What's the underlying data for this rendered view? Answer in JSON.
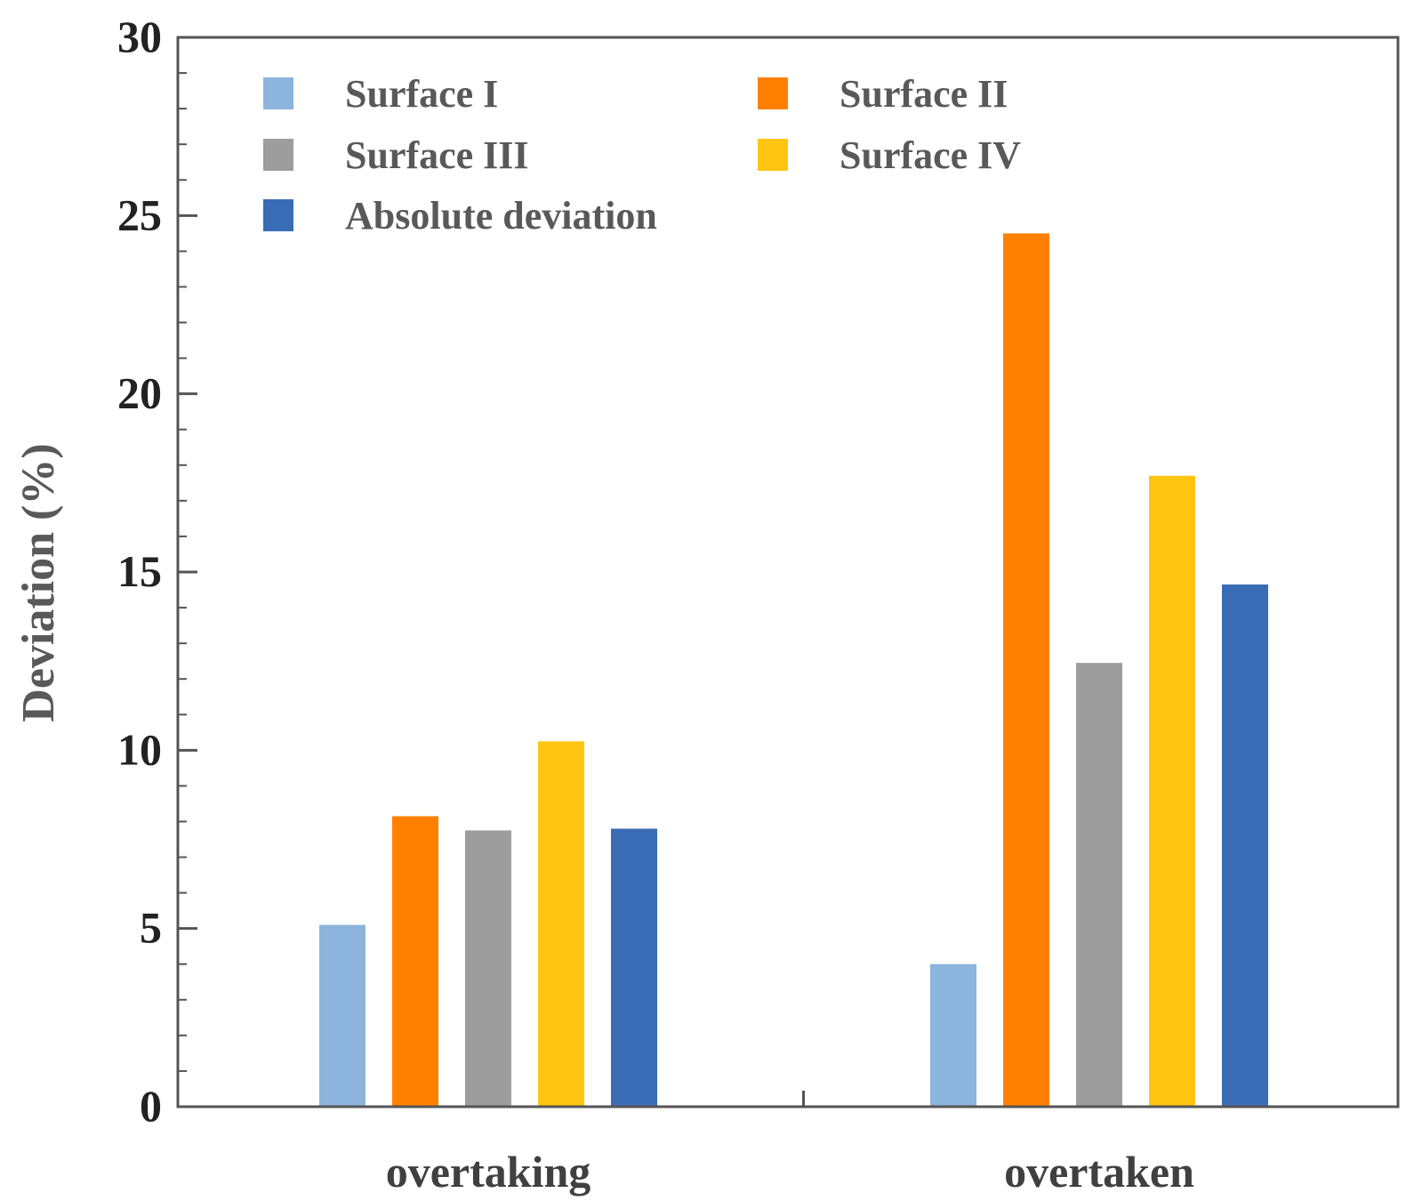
{
  "chart_data": {
    "type": "bar",
    "categories": [
      "overtaking",
      "overtaken"
    ],
    "series": [
      {
        "name": "Surface I",
        "color": "#8DB4DD",
        "values": [
          5.1,
          4.0
        ]
      },
      {
        "name": "Surface II",
        "color": "#FF8000",
        "values": [
          8.15,
          24.5
        ]
      },
      {
        "name": "Surface III",
        "color": "#9D9D9D",
        "values": [
          7.75,
          12.45
        ]
      },
      {
        "name": "Surface IV",
        "color": "#FFC511",
        "values": [
          10.25,
          17.7
        ]
      },
      {
        "name": "Absolute deviation",
        "color": "#3A6CB5",
        "values": [
          7.8,
          14.65
        ]
      }
    ],
    "xlabel": "",
    "ylabel": "Deviation (%)",
    "ylim": [
      0,
      30
    ],
    "yticks": [
      "0",
      "5",
      "10",
      "15",
      "20",
      "25",
      "30"
    ],
    "ytick_values": [
      0,
      5,
      10,
      15,
      20,
      25,
      30
    ],
    "minor_tick_step": 1,
    "grid": false,
    "legend_position": "top-left",
    "legend_columns": 2
  }
}
